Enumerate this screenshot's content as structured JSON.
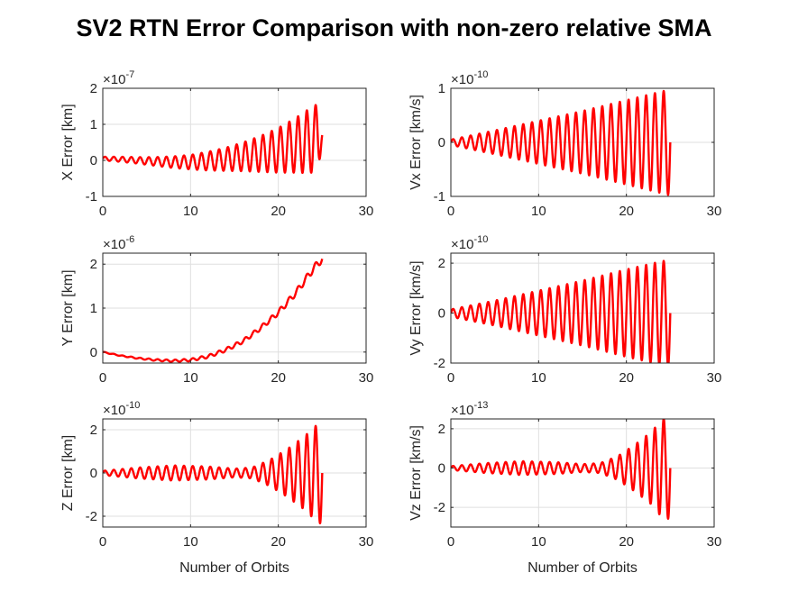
{
  "figure": {
    "title": "SV2 RTN Error Comparison with non-zero relative SMA",
    "line_color": "#ff0000",
    "grid_color": "#dfdfdf",
    "axes_color": "#262626"
  },
  "chart_data": [
    {
      "type": "line",
      "id": "x",
      "ylabel": "X Error [km]",
      "xlabel": "",
      "multiplier_base": "×10",
      "multiplier_exp": "-7",
      "xlim": [
        0,
        30
      ],
      "ylim": [
        -1,
        2
      ],
      "xticks": [
        0,
        10,
        20,
        30
      ],
      "yticks": [
        -1,
        0,
        1,
        2
      ],
      "ytick_labels": [
        "-1",
        "0",
        "1",
        "2"
      ],
      "grid": true,
      "series": [
        {
          "x": [
            0,
            2,
            4,
            6,
            8,
            10,
            12,
            14,
            16,
            18,
            20,
            22,
            23,
            24,
            24.5,
            25
          ],
          "y_center": [
            0.05,
            0.03,
            0.0,
            -0.03,
            -0.05,
            -0.05,
            -0.02,
            0.03,
            0.1,
            0.18,
            0.28,
            0.42,
            0.5,
            0.58,
            0.62,
            0.7
          ],
          "amplitude": [
            0.05,
            0.07,
            0.09,
            0.12,
            0.16,
            0.2,
            0.26,
            0.32,
            0.4,
            0.5,
            0.62,
            0.76,
            0.85,
            0.92,
            0.95,
            0.2
          ],
          "period_orbits": 1
        }
      ]
    },
    {
      "type": "line",
      "id": "vx",
      "ylabel": "Vx Error [km/s]",
      "xlabel": "",
      "multiplier_base": "×10",
      "multiplier_exp": "-10",
      "xlim": [
        0,
        30
      ],
      "ylim": [
        -1,
        1
      ],
      "xticks": [
        0,
        10,
        20,
        30
      ],
      "yticks": [
        -1,
        0,
        1
      ],
      "ytick_labels": [
        "-1",
        "0",
        "1"
      ],
      "grid": true,
      "series": [
        {
          "x": [
            0,
            5,
            10,
            15,
            20,
            25
          ],
          "y_center": [
            0,
            0,
            0,
            0,
            0,
            0
          ],
          "amplitude": [
            0.05,
            0.22,
            0.4,
            0.58,
            0.78,
            0.98
          ],
          "period_orbits": 1
        }
      ]
    },
    {
      "type": "line",
      "id": "y",
      "ylabel": "Y Error [km]",
      "xlabel": "",
      "multiplier_base": "×10",
      "multiplier_exp": "-6",
      "xlim": [
        0,
        30
      ],
      "ylim": [
        -0.25,
        2.25
      ],
      "xticks": [
        0,
        10,
        20,
        30
      ],
      "yticks": [
        0,
        1,
        2
      ],
      "ytick_labels": [
        "0",
        "1",
        "2"
      ],
      "grid": true,
      "series": [
        {
          "x": [
            0,
            2,
            4,
            6,
            8,
            10,
            12,
            14,
            16,
            18,
            20,
            22,
            24,
            25
          ],
          "y_center": [
            0,
            -0.08,
            -0.14,
            -0.18,
            -0.2,
            -0.18,
            -0.1,
            0.05,
            0.25,
            0.55,
            0.9,
            1.35,
            1.9,
            2.12
          ],
          "amplitude": [
            0.01,
            0.01,
            0.015,
            0.02,
            0.025,
            0.03,
            0.035,
            0.04,
            0.045,
            0.05,
            0.06,
            0.07,
            0.08,
            0.08
          ],
          "period_orbits": 1
        }
      ]
    },
    {
      "type": "line",
      "id": "vy",
      "ylabel": "Vy Error [km/s]",
      "xlabel": "",
      "multiplier_base": "×10",
      "multiplier_exp": "-10",
      "xlim": [
        0,
        30
      ],
      "ylim": [
        -2,
        2.4
      ],
      "xticks": [
        0,
        10,
        20,
        30
      ],
      "yticks": [
        -2,
        0,
        2
      ],
      "ytick_labels": [
        "-2",
        "0",
        "2"
      ],
      "grid": true,
      "series": [
        {
          "x": [
            0,
            5,
            10,
            15,
            20,
            25
          ],
          "y_center": [
            0,
            0,
            0,
            0,
            0,
            0
          ],
          "amplitude": [
            0.15,
            0.5,
            0.9,
            1.3,
            1.75,
            2.15
          ],
          "period_orbits": 1
        }
      ]
    },
    {
      "type": "line",
      "id": "z",
      "ylabel": "Z Error [km]",
      "xlabel": "Number of Orbits",
      "multiplier_base": "×10",
      "multiplier_exp": "-10",
      "xlim": [
        0,
        30
      ],
      "ylim": [
        -2.5,
        2.5
      ],
      "xticks": [
        0,
        10,
        20,
        30
      ],
      "yticks": [
        -2,
        0,
        2
      ],
      "ytick_labels": [
        "-2",
        "0",
        "2"
      ],
      "grid": true,
      "series": [
        {
          "x": [
            0,
            4,
            8,
            12,
            15,
            17,
            19,
            21,
            23,
            24,
            25
          ],
          "y_center": [
            0,
            0,
            0,
            0,
            0,
            0,
            0,
            0,
            0,
            0,
            0
          ],
          "amplitude": [
            0.1,
            0.25,
            0.35,
            0.3,
            0.2,
            0.25,
            0.6,
            1.1,
            1.7,
            2.1,
            2.4
          ],
          "period_orbits": 1
        }
      ]
    },
    {
      "type": "line",
      "id": "vz",
      "ylabel": "Vz Error [km/s]",
      "xlabel": "Number of Orbits",
      "multiplier_base": "×10",
      "multiplier_exp": "-13",
      "xlim": [
        0,
        30
      ],
      "ylim": [
        -3,
        2.5
      ],
      "xticks": [
        0,
        10,
        20,
        30
      ],
      "yticks": [
        -2,
        0,
        2
      ],
      "ytick_labels": [
        "-2",
        "0",
        "2"
      ],
      "grid": true,
      "series": [
        {
          "x": [
            0,
            4,
            8,
            12,
            15,
            17,
            19,
            21,
            23,
            24,
            25
          ],
          "y_center": [
            0,
            0,
            0,
            0,
            0,
            0,
            0,
            0,
            0,
            0,
            0
          ],
          "amplitude": [
            0.1,
            0.25,
            0.35,
            0.3,
            0.2,
            0.25,
            0.6,
            1.2,
            1.9,
            2.5,
            2.6
          ],
          "period_orbits": 1
        }
      ]
    }
  ]
}
